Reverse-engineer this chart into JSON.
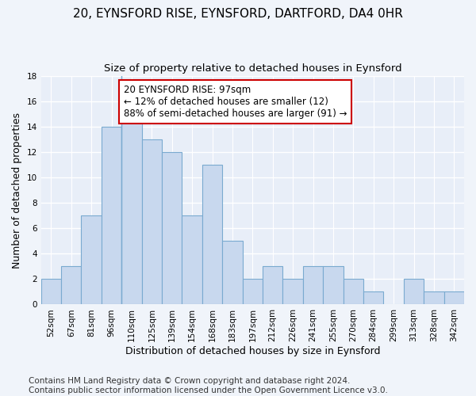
{
  "title": "20, EYNSFORD RISE, EYNSFORD, DARTFORD, DA4 0HR",
  "subtitle": "Size of property relative to detached houses in Eynsford",
  "xlabel": "Distribution of detached houses by size in Eynsford",
  "ylabel": "Number of detached properties",
  "categories": [
    "52sqm",
    "67sqm",
    "81sqm",
    "96sqm",
    "110sqm",
    "125sqm",
    "139sqm",
    "154sqm",
    "168sqm",
    "183sqm",
    "197sqm",
    "212sqm",
    "226sqm",
    "241sqm",
    "255sqm",
    "270sqm",
    "284sqm",
    "299sqm",
    "313sqm",
    "328sqm",
    "342sqm"
  ],
  "values": [
    2,
    3,
    7,
    14,
    15,
    13,
    12,
    7,
    11,
    5,
    2,
    3,
    2,
    3,
    3,
    2,
    1,
    0,
    2,
    1,
    1
  ],
  "bar_color": "#c8d8ee",
  "bar_edge_color": "#7aaad0",
  "annotation_text": "20 EYNSFORD RISE: 97sqm\n← 12% of detached houses are smaller (12)\n88% of semi-detached houses are larger (91) →",
  "annotation_box_color": "#ffffff",
  "annotation_box_edge_color": "#cc0000",
  "vline_x": 3.5,
  "ylim": [
    0,
    18
  ],
  "yticks": [
    0,
    2,
    4,
    6,
    8,
    10,
    12,
    14,
    16,
    18
  ],
  "footer": "Contains HM Land Registry data © Crown copyright and database right 2024.\nContains public sector information licensed under the Open Government Licence v3.0.",
  "bg_color": "#f0f4fa",
  "plot_bg_color": "#e8eef8",
  "grid_color": "#ffffff",
  "title_fontsize": 11,
  "subtitle_fontsize": 9.5,
  "axis_label_fontsize": 9,
  "tick_fontsize": 7.5,
  "annotation_fontsize": 8.5,
  "footer_fontsize": 7.5
}
